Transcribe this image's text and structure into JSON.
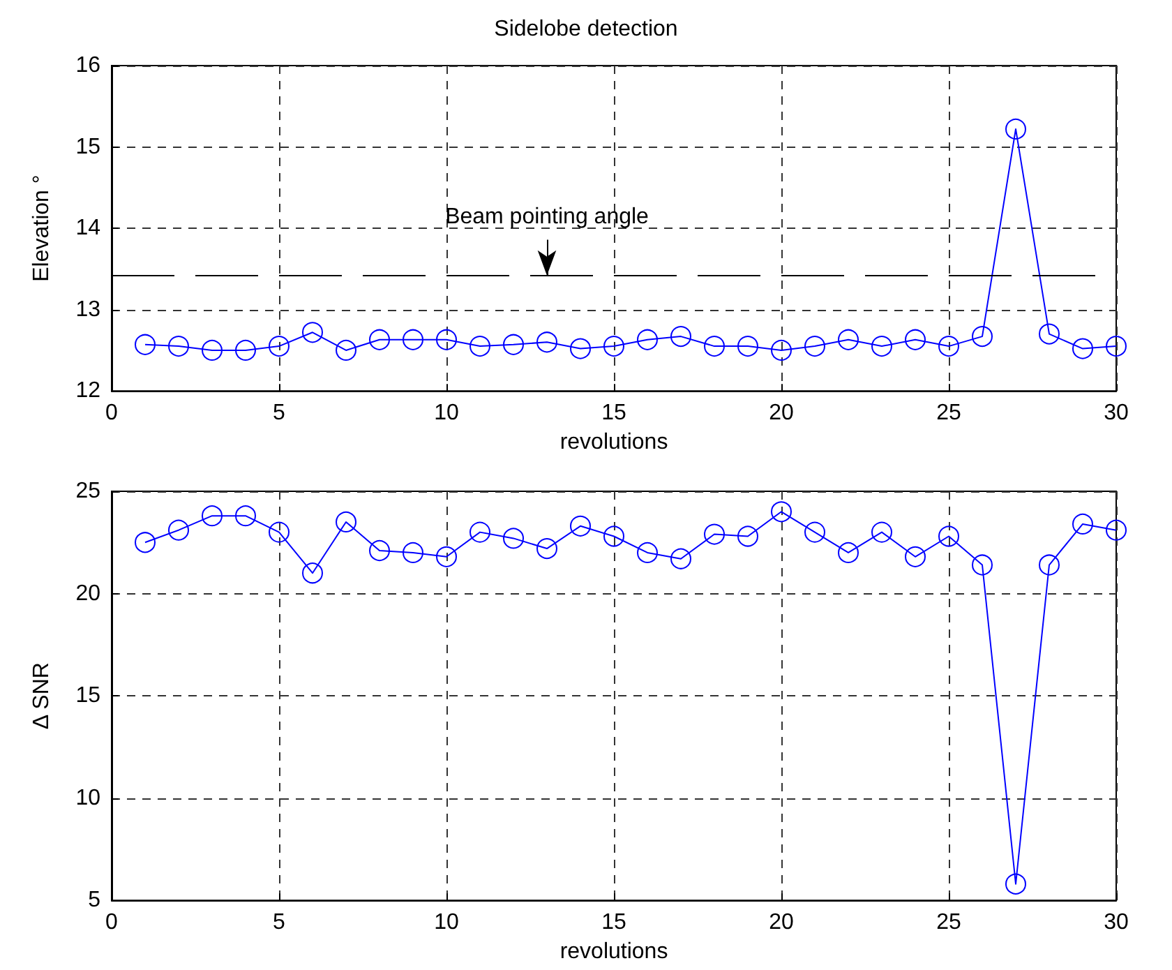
{
  "chart_data": [
    {
      "type": "line",
      "title": "Sidelobe detection",
      "xlabel": "revolutions",
      "ylabel": "Elevation °",
      "x": [
        1,
        2,
        3,
        4,
        5,
        6,
        7,
        8,
        9,
        10,
        11,
        12,
        13,
        14,
        15,
        16,
        17,
        18,
        19,
        20,
        21,
        22,
        23,
        24,
        25,
        26,
        27,
        28,
        29,
        30
      ],
      "series": [
        {
          "color": "#0000ff",
          "values": [
            12.57,
            12.55,
            12.5,
            12.5,
            12.55,
            12.72,
            12.5,
            12.63,
            12.63,
            12.63,
            12.55,
            12.57,
            12.6,
            12.52,
            12.55,
            12.63,
            12.67,
            12.55,
            12.55,
            12.5,
            12.55,
            12.63,
            12.55,
            12.63,
            12.55,
            12.67,
            15.22,
            12.7,
            12.52,
            12.55
          ]
        }
      ],
      "xlim": [
        0,
        30
      ],
      "xticks": [
        0,
        5,
        10,
        15,
        20,
        25,
        30
      ],
      "ylim": [
        12,
        16
      ],
      "yticks": [
        12,
        13,
        14,
        15,
        16
      ],
      "ref_lines": [
        {
          "axis": "y",
          "value": 13.42,
          "color": "#000000",
          "line_style": "dashed"
        }
      ],
      "annotations": [
        {
          "text": "Beam pointing angle",
          "x": 13,
          "y": 13.42
        }
      ],
      "grid": true,
      "marker": "circle",
      "line_style": "solid"
    },
    {
      "type": "line",
      "xlabel": "revolutions",
      "ylabel": "Δ SNR",
      "x": [
        1,
        2,
        3,
        4,
        5,
        6,
        7,
        8,
        9,
        10,
        11,
        12,
        13,
        14,
        15,
        16,
        17,
        18,
        19,
        20,
        21,
        22,
        23,
        24,
        25,
        26,
        27,
        28,
        29,
        30
      ],
      "series": [
        {
          "color": "#0000ff",
          "values": [
            22.5,
            23.1,
            23.8,
            23.8,
            23,
            21,
            23.5,
            22.1,
            22,
            21.8,
            23,
            22.7,
            22.2,
            23.3,
            22.8,
            22,
            21.7,
            22.9,
            22.8,
            24,
            23,
            22,
            23,
            21.8,
            22.8,
            21.4,
            5.8,
            21.4,
            23.4,
            23.1
          ]
        }
      ],
      "xlim": [
        0,
        30
      ],
      "xticks": [
        0,
        5,
        10,
        15,
        20,
        25,
        30
      ],
      "ylim": [
        5,
        25
      ],
      "yticks": [
        5,
        10,
        15,
        20,
        25
      ],
      "grid": true,
      "marker": "circle",
      "line_style": "solid"
    }
  ]
}
